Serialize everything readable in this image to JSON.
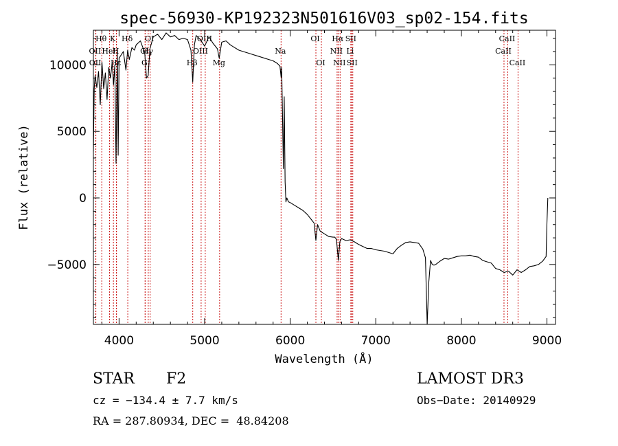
{
  "chart_data": {
    "type": "line",
    "title": "spec-56930-KP192323N501616V03_sp02-154.fits",
    "xlabel": "Wavelength (Å)",
    "ylabel": "Flux (relative)",
    "xlim": [
      3700,
      9100
    ],
    "ylim": [
      -9500,
      12600
    ],
    "x_ticks": [
      4000,
      5000,
      6000,
      7000,
      8000,
      9000
    ],
    "x_tick_labels": [
      "4000",
      "5000",
      "6000",
      "7000",
      "8000",
      "9000"
    ],
    "y_ticks": [
      10000,
      5000,
      0,
      -5000
    ],
    "y_tick_labels": [
      "10000",
      "5000",
      "0",
      "−5000"
    ],
    "grid": false,
    "series": [
      {
        "color": "#000000",
        "x": [
          3700,
          3710,
          3720,
          3740,
          3760,
          3780,
          3800,
          3820,
          3840,
          3860,
          3880,
          3900,
          3920,
          3935,
          3950,
          3965,
          3980,
          3990,
          4000,
          4050,
          4080,
          4100,
          4120,
          4150,
          4180,
          4200,
          4250,
          4300,
          4320,
          4340,
          4360,
          4400,
          4450,
          4500,
          4550,
          4600,
          4650,
          4700,
          4750,
          4800,
          4840,
          4861,
          4880,
          4900,
          4950,
          5000,
          5050,
          5100,
          5150,
          5170,
          5200,
          5250,
          5300,
          5350,
          5400,
          5450,
          5500,
          5550,
          5600,
          5650,
          5700,
          5750,
          5800,
          5850,
          5880,
          5893,
          5900,
          5910,
          5920,
          5930,
          5940,
          5950,
          5960,
          5980,
          6000,
          6050,
          6100,
          6150,
          6200,
          6250,
          6280,
          6300,
          6320,
          6350,
          6400,
          6450,
          6500,
          6520,
          6540,
          6563,
          6580,
          6600,
          6650,
          6700,
          6750,
          6800,
          6850,
          6900,
          6950,
          7000,
          7050,
          7100,
          7150,
          7200,
          7250,
          7300,
          7350,
          7400,
          7450,
          7500,
          7550,
          7580,
          7600,
          7620,
          7640,
          7660,
          7680,
          7700,
          7750,
          7800,
          7850,
          7900,
          7950,
          8000,
          8050,
          8100,
          8150,
          8200,
          8250,
          8300,
          8350,
          8400,
          8450,
          8500,
          8550,
          8600,
          8650,
          8700,
          8750,
          8800,
          8850,
          8900,
          8950,
          8990,
          9000,
          9010
        ],
        "y": [
          3500,
          8200,
          9200,
          8300,
          9500,
          7000,
          10200,
          8200,
          9400,
          7400,
          9800,
          9000,
          10200,
          8500,
          10000,
          2600,
          11000,
          3200,
          10500,
          11000,
          9600,
          11100,
          10400,
          11300,
          11100,
          11500,
          11800,
          10900,
          9000,
          9200,
          11200,
          12100,
          12300,
          11900,
          12400,
          12100,
          12200,
          11900,
          12000,
          11900,
          11100,
          8700,
          11500,
          12200,
          11900,
          11400,
          12100,
          11600,
          11200,
          10500,
          11700,
          11800,
          11500,
          11300,
          11100,
          11000,
          10900,
          10800,
          10700,
          10600,
          10500,
          10400,
          10300,
          10100,
          9900,
          9100,
          9800,
          6200,
          2200,
          7600,
          1200,
          -300,
          0,
          -300,
          -350,
          -550,
          -750,
          -950,
          -1250,
          -1650,
          -1900,
          -3200,
          -2000,
          -2500,
          -2700,
          -2900,
          -2950,
          -2950,
          -3100,
          -4700,
          -3300,
          -3050,
          -3200,
          -3150,
          -3300,
          -3500,
          -3650,
          -3800,
          -3800,
          -3900,
          -3950,
          -4000,
          -4100,
          -4200,
          -3800,
          -3550,
          -3350,
          -3300,
          -3350,
          -3400,
          -3850,
          -4500,
          -9500,
          -6300,
          -4700,
          -5000,
          -5050,
          -5000,
          -4750,
          -4550,
          -4600,
          -4500,
          -4400,
          -4350,
          -4350,
          -4300,
          -4400,
          -4450,
          -4700,
          -4800,
          -4900,
          -5300,
          -5400,
          -5600,
          -5500,
          -5800,
          -5400,
          -5600,
          -5400,
          -5150,
          -5100,
          -5000,
          -4750,
          -4400,
          -1900,
          0
        ]
      }
    ],
    "line_markers": [
      {
        "label": "Hθ",
        "x": 3798,
        "row": 0
      },
      {
        "label": "OII",
        "x": 3727,
        "row": 1
      },
      {
        "label": "OII",
        "x": 3729,
        "row": 2
      },
      {
        "label": "K",
        "x": 3934,
        "row": 0
      },
      {
        "label": "HeI",
        "x": 3889,
        "row": 1
      },
      {
        "label": "Hε",
        "x": 3970,
        "row": 2
      },
      {
        "label": "Hδ",
        "x": 4102,
        "row": 0
      },
      {
        "label": "H",
        "x": 3969,
        "row": 1
      },
      {
        "label": "Gl",
        "x": 4304,
        "row": 1
      },
      {
        "label": "OI",
        "x": 4363,
        "row": 0
      },
      {
        "label": "Hγ",
        "x": 4341,
        "row": 1
      },
      {
        "label": "G",
        "x": 4305,
        "row": 2
      },
      {
        "label": "OIII",
        "x": 5007,
        "row": 0
      },
      {
        "label": "OIII",
        "x": 4959,
        "row": 1
      },
      {
        "label": "Hβ",
        "x": 4861,
        "row": 2
      },
      {
        "label": "Mg",
        "x": 5175,
        "row": 2
      },
      {
        "label": "Na",
        "x": 5893,
        "row": 1
      },
      {
        "label": "OI",
        "x": 6300,
        "row": 0
      },
      {
        "label": "OI",
        "x": 6364,
        "row": 2
      },
      {
        "label": "Hα",
        "x": 6563,
        "row": 0
      },
      {
        "label": "NII",
        "x": 6548,
        "row": 1
      },
      {
        "label": "NII",
        "x": 6583,
        "row": 2
      },
      {
        "label": "SII",
        "x": 6716,
        "row": 0
      },
      {
        "label": "Li",
        "x": 6708,
        "row": 1
      },
      {
        "label": "SII",
        "x": 6731,
        "row": 2
      },
      {
        "label": "CaII",
        "x": 8542,
        "row": 0
      },
      {
        "label": "CaII",
        "x": 8498,
        "row": 1
      },
      {
        "label": "CaII",
        "x": 8662,
        "row": 2
      }
    ]
  },
  "info": {
    "object_class": "STAR",
    "subclass": "F2",
    "survey": "LAMOST DR3",
    "cz": "cz = −134.4 ± 7.7 km/s",
    "obs_date": "Obs−Date: 20140929",
    "coords": "RA = 287.80934, DEC =  48.84208"
  }
}
